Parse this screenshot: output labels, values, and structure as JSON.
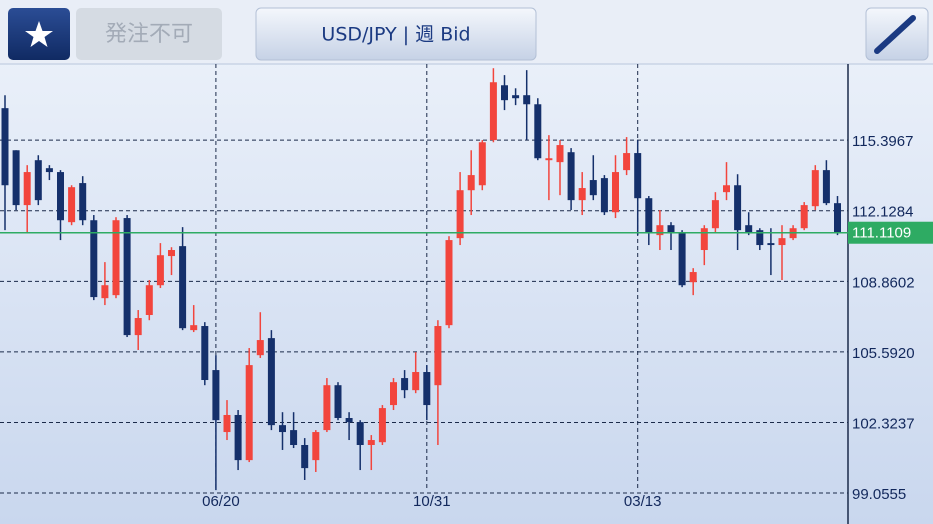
{
  "header": {
    "order_status": "発注不可",
    "instrument": "USD/JPY | 週 Bid"
  },
  "chart_data": {
    "type": "candlestick",
    "categories": [
      null,
      null,
      null,
      null,
      null,
      null,
      null,
      null,
      null,
      null,
      null,
      null,
      null,
      null,
      null,
      null,
      null,
      null,
      null,
      "06/20",
      null,
      null,
      null,
      null,
      null,
      null,
      null,
      null,
      null,
      null,
      null,
      null,
      null,
      null,
      null,
      null,
      null,
      null,
      "10/31",
      null,
      null,
      null,
      null,
      null,
      null,
      null,
      null,
      null,
      null,
      null,
      null,
      null,
      null,
      null,
      null,
      null,
      null,
      "03/13",
      null,
      null,
      null,
      null,
      null,
      null,
      null,
      null,
      null,
      null,
      null,
      null,
      null,
      null,
      null,
      null,
      null,
      null
    ],
    "open": [
      116.88,
      114.93,
      112.39,
      114.47,
      114.1,
      113.92,
      111.6,
      113.41,
      111.69,
      108.08,
      108.22,
      111.79,
      106.37,
      107.3,
      108.68,
      110.03,
      110.49,
      106.6,
      106.79,
      104.75,
      101.88,
      102.67,
      100.58,
      105.44,
      106.23,
      102.2,
      101.97,
      101.28,
      100.58,
      101.97,
      104.05,
      102.53,
      102.34,
      101.28,
      101.41,
      103.13,
      104.38,
      103.82,
      104.66,
      104.05,
      106.83,
      110.86,
      113.08,
      113.31,
      115.4,
      117.94,
      117.48,
      117.48,
      117.06,
      114.47,
      114.38,
      114.84,
      112.62,
      113.55,
      113.64,
      112.06,
      114.01,
      114.8,
      112.71,
      111.0,
      111.46,
      111.14,
      108.82,
      110.31,
      111.32,
      112.99,
      113.31,
      111.46,
      111.23,
      110.63,
      110.54,
      110.86,
      111.32,
      112.34,
      114.01,
      112.48
    ],
    "high": [
      117.48,
      114.93,
      114.24,
      114.7,
      114.24,
      114.01,
      113.31,
      113.73,
      111.93,
      109.75,
      111.83,
      111.93,
      107.53,
      108.92,
      110.63,
      110.44,
      111.37,
      107.76,
      106.97,
      105.44,
      103.36,
      102.9,
      105.77,
      107.43,
      106.6,
      102.8,
      102.8,
      101.6,
      101.97,
      104.38,
      104.19,
      102.8,
      102.43,
      101.74,
      103.13,
      104.38,
      104.75,
      105.58,
      104.98,
      107.06,
      110.95,
      113.92,
      114.93,
      115.4,
      118.73,
      118.41,
      117.8,
      118.64,
      117.34,
      115.63,
      115.4,
      115.03,
      113.92,
      114.7,
      113.78,
      114.7,
      115.54,
      115.4,
      112.81,
      112.16,
      111.6,
      111.23,
      109.47,
      111.46,
      112.99,
      114.38,
      113.82,
      112.06,
      111.32,
      111.32,
      111.46,
      111.46,
      112.53,
      114.24,
      114.47,
      112.81
    ],
    "low": [
      111.23,
      112.16,
      111.14,
      112.39,
      113.55,
      110.77,
      111.46,
      111.46,
      107.99,
      107.76,
      108.08,
      106.28,
      105.68,
      107.06,
      108.55,
      109.15,
      106.6,
      106.51,
      104.05,
      99.19,
      101.51,
      100.12,
      100.49,
      105.31,
      101.97,
      101.05,
      101.14,
      99.66,
      100.03,
      101.88,
      102.43,
      101.51,
      100.12,
      100.12,
      101.28,
      102.9,
      103.45,
      103.68,
      102.43,
      101.28,
      106.69,
      110.54,
      111.93,
      113.08,
      115.3,
      116.79,
      117.02,
      115.4,
      114.47,
      112.62,
      112.85,
      112.16,
      111.93,
      112.62,
      111.93,
      111.79,
      113.78,
      111.0,
      110.54,
      110.31,
      110.31,
      108.59,
      108.22,
      109.61,
      111.14,
      112.62,
      110.31,
      111.0,
      110.31,
      109.15,
      108.92,
      110.77,
      111.23,
      112.16,
      112.39,
      111.0
    ],
    "close": [
      113.31,
      112.39,
      113.92,
      112.62,
      113.92,
      111.69,
      113.22,
      111.69,
      108.13,
      108.68,
      111.69,
      106.37,
      107.16,
      108.68,
      110.07,
      110.31,
      106.69,
      106.83,
      104.29,
      102.43,
      102.67,
      100.58,
      104.98,
      106.14,
      102.2,
      101.88,
      101.28,
      100.21,
      101.88,
      104.05,
      102.53,
      102.34,
      101.28,
      101.51,
      102.99,
      104.19,
      103.82,
      104.66,
      103.13,
      106.79,
      110.77,
      113.08,
      113.78,
      115.3,
      118.08,
      117.25,
      117.34,
      117.06,
      114.56,
      114.56,
      115.17,
      112.62,
      113.18,
      112.85,
      112.06,
      113.92,
      114.8,
      112.71,
      111.14,
      111.46,
      111.14,
      108.68,
      109.29,
      111.32,
      112.62,
      113.31,
      111.23,
      111.14,
      110.54,
      110.54,
      110.86,
      111.32,
      112.39,
      114.01,
      112.48,
      111.14
    ],
    "up_color": "#f2453d",
    "down_color": "#15306b",
    "current_price": 111.1109,
    "current_price_color": "#2eab63",
    "ylim": [
      98.27,
      119.11
    ],
    "yticks": [
      115.3967,
      112.1284,
      108.8602,
      {
        "value": 105.592,
        "label": "105.5920"
      },
      102.3237,
      99.0555
    ],
    "grid": true
  }
}
